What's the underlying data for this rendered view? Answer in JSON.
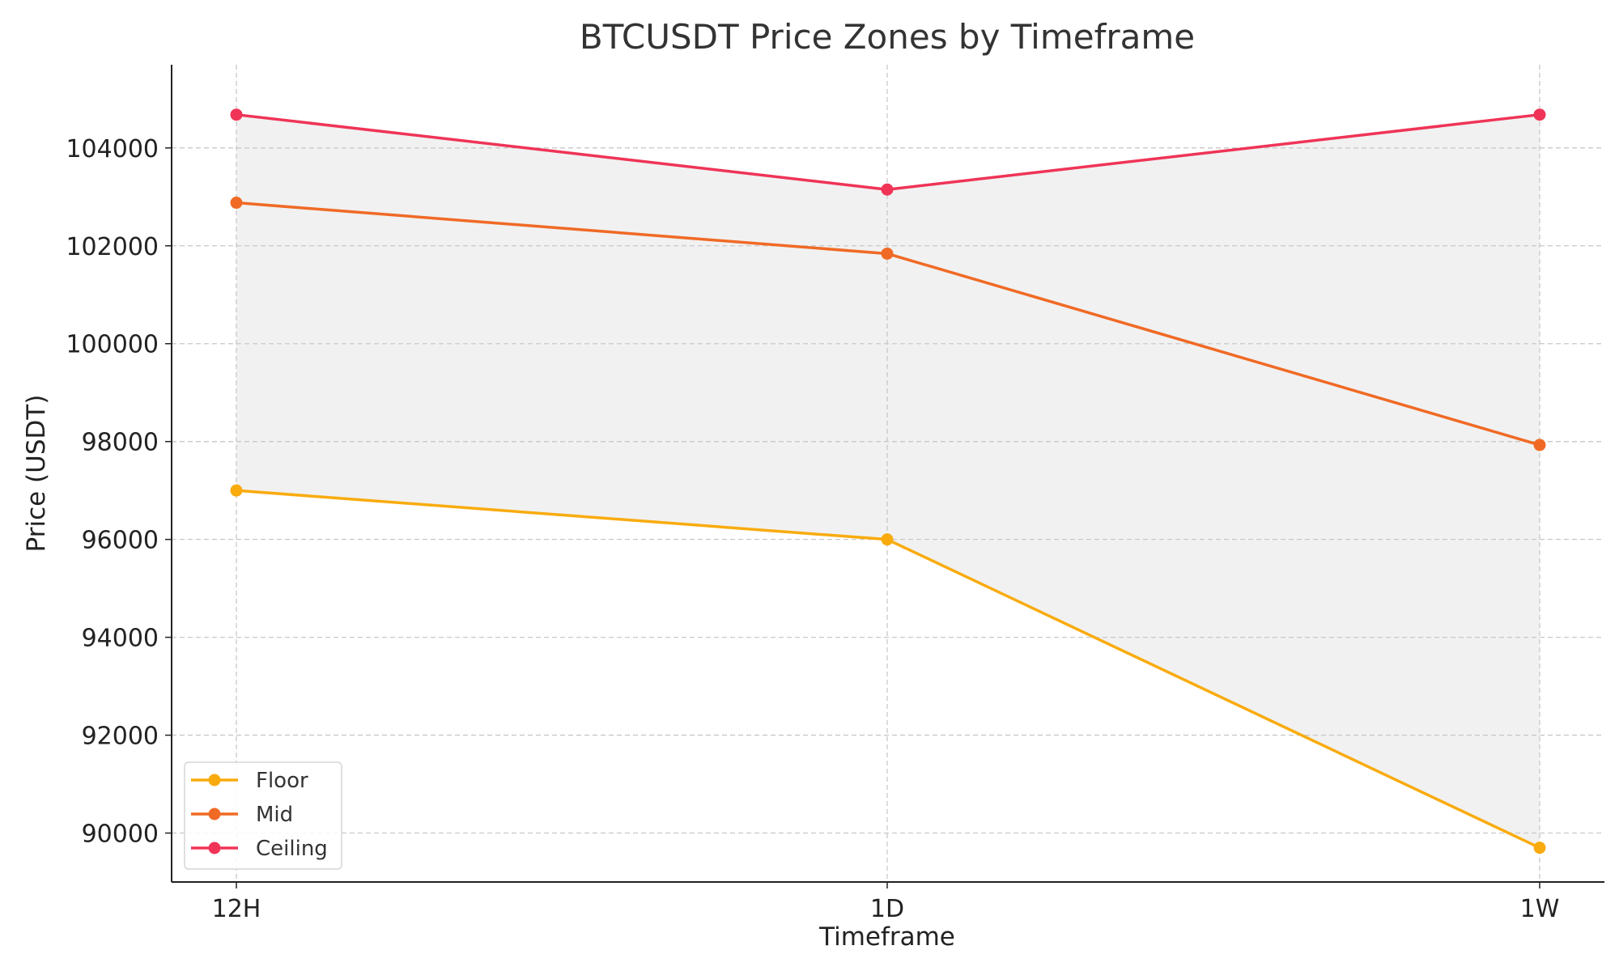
{
  "chart_data": {
    "type": "line",
    "title": "BTCUSDT Price Zones by Timeframe",
    "xlabel": "Timeframe",
    "ylabel": "Price (USDT)",
    "categories": [
      "12H",
      "1D",
      "1W"
    ],
    "ylim": [
      89000,
      105700
    ],
    "yticks": [
      90000,
      92000,
      94000,
      96000,
      98000,
      100000,
      102000,
      104000
    ],
    "grid": true,
    "fill_between": [
      "Floor",
      "Ceiling"
    ],
    "fill_color": "#f1f1f1",
    "legend_position": "lower-left",
    "series": [
      {
        "name": "Floor",
        "color": "#f9ab0e",
        "values": [
          97000,
          96000,
          89700
        ]
      },
      {
        "name": "Mid",
        "color": "#f06a25",
        "values": [
          102880,
          101840,
          97930
        ]
      },
      {
        "name": "Ceiling",
        "color": "#ef3457",
        "values": [
          104680,
          103150,
          104680
        ]
      }
    ]
  }
}
